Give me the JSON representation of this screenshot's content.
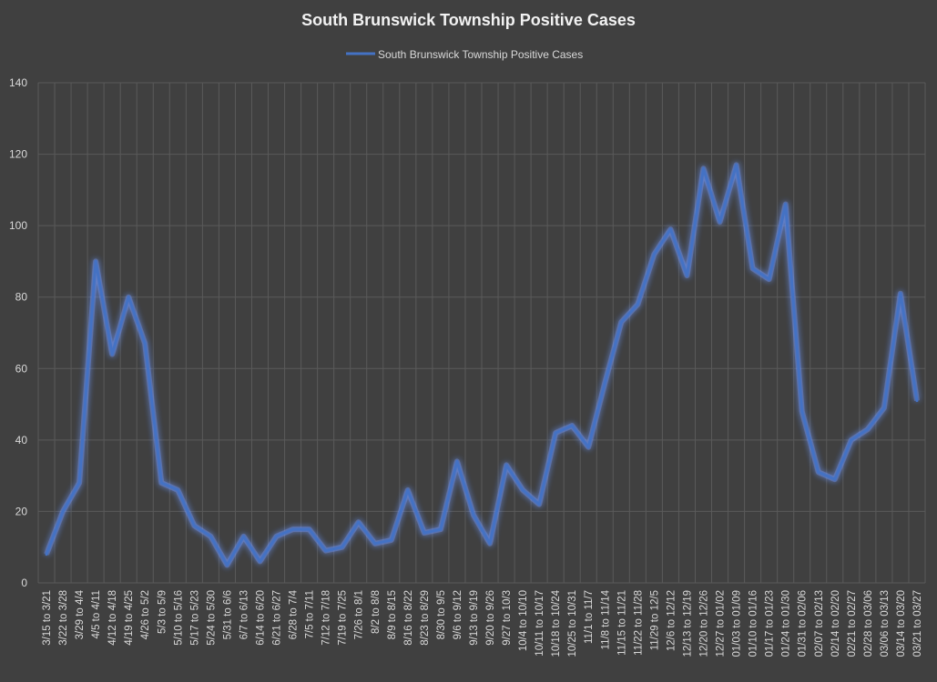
{
  "colors": {
    "background": "#404040",
    "grid": "#5a5a5a",
    "axis_text": "#d9d9d9",
    "title_text": "#f2f2f2",
    "series_line": "#4472C4",
    "series_glow": "#6f97ff"
  },
  "chart_data": {
    "type": "line",
    "title": "South Brunswick Township Positive Cases",
    "xlabel": "",
    "ylabel": "",
    "ylim": [
      0,
      140
    ],
    "y_ticks": [
      0,
      20,
      40,
      60,
      80,
      100,
      120,
      140
    ],
    "grid": true,
    "legend_position": "top-center",
    "categories": [
      "3/15 to 3/21",
      "3/22 to 3/28",
      "3/29 to 4/4",
      "4/5 to 4/11",
      "4/12 to 4/18",
      "4/19 to 4/25",
      "4/26 to 5/2",
      "5/3 to 5/9",
      "5/10 to 5/16",
      "5/17 to 5/23",
      "5/24 to 5/30",
      "5/31 to 6/6",
      "6/7 to 6/13",
      "6/14 to 6/20",
      "6/21 to 6/27",
      "6/28 to 7/4",
      "7/5 to 7/11",
      "7/12 to 7/18",
      "7/19 to 7/25",
      "7/26 to 8/1",
      "8/2 to 8/8",
      "8/9 to 8/15",
      "8/16 to 8/22",
      "8/23 to 8/29",
      "8/30 to 9/5",
      "9/6 to 9/12",
      "9/13 to 9/19",
      "9/20 to 9/26",
      "9/27 to 10/3",
      "10/4 to 10/10",
      "10/11 to 10/17",
      "10/18 to 10/24",
      "10/25 to 10/31",
      "11/1 to 11/7",
      "11/8 to 11/14",
      "11/15 to 11/21",
      "11/22 to 11/28",
      "11/29 to 12/5",
      "12/6 to 12/12",
      "12/13 to 12/19",
      "12/20 to 12/26",
      "12/27 to 01/02",
      "01/03 to 01/09",
      "01/10 to 01/16",
      "01/17 to 01/23",
      "01/24 to 01/30",
      "01/31 to 02/06",
      "02/07 to 02/13",
      "02/14 to 02/20",
      "02/21 to 02/27",
      "02/28 to 03/06",
      "03/06 to 03/13",
      "03/14 to 03/20",
      "03/21 to 03/27"
    ],
    "series": [
      {
        "name": "South Brunswick Township Positive Cases",
        "values": [
          8,
          20,
          28,
          90,
          64,
          80,
          67,
          28,
          26,
          16,
          13,
          5,
          13,
          6,
          13,
          15,
          15,
          9,
          10,
          17,
          11,
          12,
          26,
          14,
          15,
          34,
          19,
          11,
          33,
          26,
          22,
          42,
          44,
          38,
          56,
          73,
          78,
          92,
          99,
          86,
          116,
          101,
          117,
          88,
          85,
          106,
          48,
          31,
          29,
          40,
          43,
          49,
          81,
          51
        ]
      }
    ]
  }
}
